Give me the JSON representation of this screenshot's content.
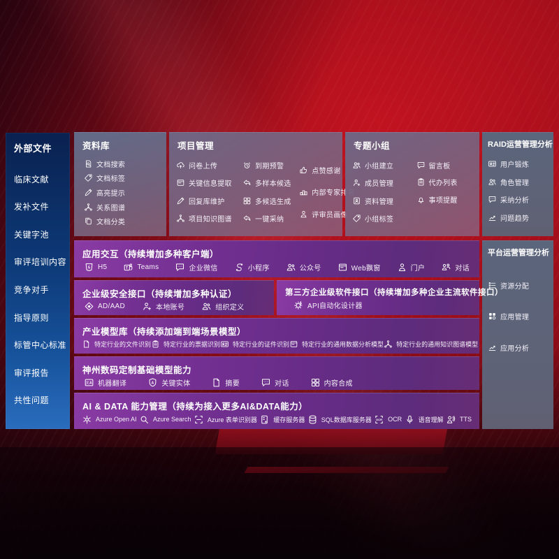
{
  "left_sidebar": {
    "title": "外部文件",
    "items": [
      {
        "label": "临床文献"
      },
      {
        "label": "发补文件"
      },
      {
        "label": "关键字池"
      },
      {
        "label": "审评培训内容"
      },
      {
        "label": "竞争对手"
      },
      {
        "label": "指导原则"
      },
      {
        "label": "标管中心标准"
      },
      {
        "label": "审评报告"
      },
      {
        "label": "共性问题"
      }
    ]
  },
  "repo_box": {
    "title": "资料库",
    "items": [
      {
        "icon": "doc-search",
        "label": "文档搜索"
      },
      {
        "icon": "tag",
        "label": "文档标签"
      },
      {
        "icon": "pen",
        "label": "高亮提示"
      },
      {
        "icon": "net",
        "label": "关系图谱"
      },
      {
        "icon": "docs",
        "label": "文档分类"
      }
    ]
  },
  "project_box": {
    "title": "项目管理",
    "col1": [
      {
        "icon": "cloud-up",
        "label": "问卷上传"
      },
      {
        "icon": "window",
        "label": "关键信息提取"
      },
      {
        "icon": "pen",
        "label": "回复库维护"
      },
      {
        "icon": "net",
        "label": "项目知识图谱"
      }
    ],
    "col2": [
      {
        "icon": "alarm",
        "label": "到期预警"
      },
      {
        "icon": "reply",
        "label": "多样本候选"
      },
      {
        "icon": "puzzle",
        "label": "多候选生成"
      },
      {
        "icon": "reply",
        "label": "一键采纳"
      }
    ],
    "col3": [
      {
        "icon": "thumb",
        "label": "点赞感谢"
      },
      {
        "icon": "rank",
        "label": "内部专家排名"
      },
      {
        "icon": "person",
        "label": "评审员画像"
      }
    ]
  },
  "group_box": {
    "title": "专题小组",
    "col1": [
      {
        "icon": "people",
        "label": "小组建立"
      },
      {
        "icon": "person-add",
        "label": "成员管理"
      },
      {
        "icon": "album",
        "label": "资料管理"
      },
      {
        "icon": "tag",
        "label": "小组标签"
      }
    ],
    "col2": [
      {
        "icon": "chat",
        "label": "留言板"
      },
      {
        "icon": "clipboard",
        "label": "代办列表"
      },
      {
        "icon": "bell",
        "label": "事项提醒"
      }
    ]
  },
  "raid_box": {
    "title": "RAID运营管理分析",
    "items": [
      {
        "icon": "idcard",
        "label": "用户锻炼"
      },
      {
        "icon": "people",
        "label": "角色管理"
      },
      {
        "icon": "chat",
        "label": "采纳分析"
      },
      {
        "icon": "chart",
        "label": "问题趋势"
      }
    ]
  },
  "platform_box": {
    "title": "平台运营管理分析",
    "items": [
      {
        "icon": "list",
        "label": "资源分配"
      },
      {
        "icon": "grid",
        "label": "应用管理"
      },
      {
        "icon": "chart",
        "label": "应用分析"
      }
    ]
  },
  "interact_row": {
    "title": "应用交互（持续增加多种客户端）",
    "items": [
      {
        "icon": "h5",
        "label": "H5"
      },
      {
        "icon": "teams",
        "label": "Teams"
      },
      {
        "icon": "chat",
        "label": "企业微信"
      },
      {
        "icon": "scurve",
        "label": "小程序"
      },
      {
        "icon": "people",
        "label": "公众号"
      },
      {
        "icon": "window",
        "label": "Web飘窗"
      },
      {
        "icon": "person",
        "label": "门户"
      },
      {
        "icon": "people2",
        "label": "对话"
      }
    ]
  },
  "security_box": {
    "title": "企业级安全接口（持续增加多种认证）",
    "items": [
      {
        "icon": "diamond",
        "label": "AD/AAD"
      },
      {
        "icon": "person-add",
        "label": "本地账号"
      },
      {
        "icon": "people",
        "label": "组织定义"
      }
    ]
  },
  "third_box": {
    "title": "第三方企业级软件接口（持续增加多种企业主流软件接口）",
    "items": [
      {
        "icon": "gear-bolt",
        "label": "API自动化设计器"
      }
    ]
  },
  "industry_row": {
    "title": "产业模型库（持续添加端到端场景模型）",
    "items": [
      {
        "icon": "doc",
        "label": "特定行业的文件识别"
      },
      {
        "icon": "clipboard",
        "label": "特定行业的票据识别"
      },
      {
        "icon": "idcard",
        "label": "特定行业的证件识别"
      },
      {
        "icon": "window",
        "label": "特定行业的通用数据分析模型"
      },
      {
        "icon": "net",
        "label": "特定行业的通用知识图谱模型"
      }
    ]
  },
  "base_row": {
    "title": "神州数码定制基础模型能力",
    "items": [
      {
        "icon": "translate",
        "label": "机器翻译"
      },
      {
        "icon": "shield-a",
        "label": "关键实体"
      },
      {
        "icon": "doc",
        "label": "摘要"
      },
      {
        "icon": "chat",
        "label": "对话"
      },
      {
        "icon": "puzzle",
        "label": "内容合成"
      }
    ]
  },
  "aidata_row": {
    "title": "AI & DATA 能力管理（持续为接入更多AI&DATA能力）",
    "items": [
      {
        "icon": "flower",
        "label": "Azure Open AI"
      },
      {
        "icon": "search",
        "label": "Azure Search"
      },
      {
        "icon": "brackets",
        "label": "Azure 表单识别器"
      },
      {
        "icon": "server",
        "label": "缓存服务器"
      },
      {
        "icon": "db",
        "label": "SQL数据库服务器"
      },
      {
        "icon": "ocr",
        "label": "OCR"
      },
      {
        "icon": "mic",
        "label": "语音理解"
      },
      {
        "icon": "tts",
        "label": "TTS"
      }
    ]
  }
}
